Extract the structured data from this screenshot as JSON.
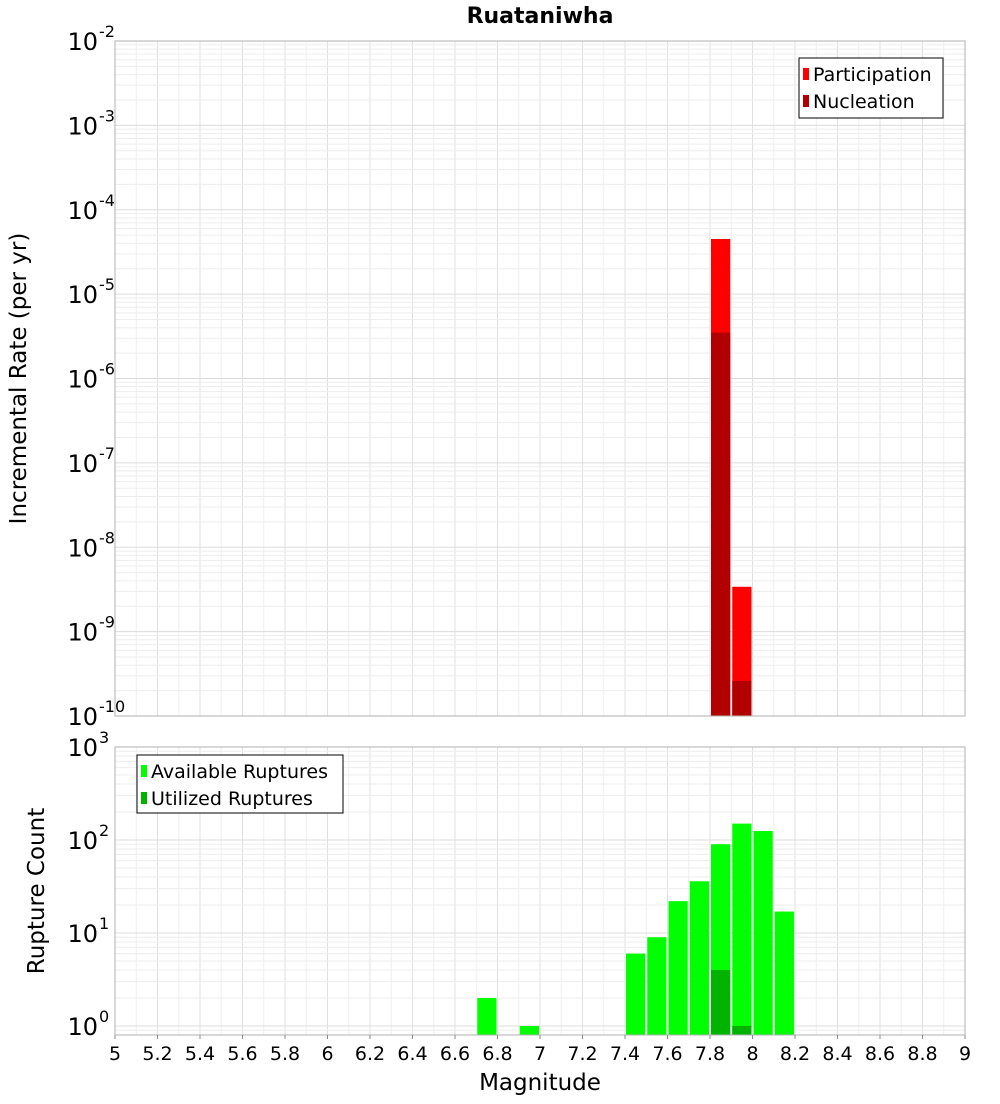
{
  "title": "Ruataniwha",
  "chart_data": [
    {
      "type": "bar",
      "panel": "top",
      "ylabel": "Incremental Rate (per yr)",
      "yscale": "log",
      "ylim": [
        1e-10,
        0.01
      ],
      "y_tick_exponents": [
        -10,
        -9,
        -8,
        -7,
        -6,
        -5,
        -4,
        -3,
        -2
      ],
      "xlim": [
        5,
        9
      ],
      "bar_width": 0.1,
      "legend": {
        "placement": "top-right",
        "entries": [
          "Participation",
          "Nucleation"
        ]
      },
      "series": [
        {
          "name": "Participation",
          "color": "#ff0000",
          "x": [
            7.85,
            7.95
          ],
          "values": [
            4.5e-05,
            3.4e-09
          ]
        },
        {
          "name": "Nucleation",
          "color": "#b20000",
          "x": [
            7.85,
            7.95
          ],
          "values": [
            3.5e-06,
            2.6e-10
          ]
        }
      ],
      "grid": true
    },
    {
      "type": "bar",
      "panel": "bottom",
      "xlabel": "Magnitude",
      "ylabel": "Rupture Count",
      "yscale": "log",
      "ylim": [
        0.8,
        1000
      ],
      "y_tick_exponents": [
        0,
        1,
        2,
        3
      ],
      "xlim": [
        5,
        9
      ],
      "x_ticks": [
        "5",
        "5.2",
        "5.4",
        "5.6",
        "5.8",
        "6",
        "6.2",
        "6.4",
        "6.6",
        "6.8",
        "7",
        "7.2",
        "7.4",
        "7.6",
        "7.8",
        "8",
        "8.2",
        "8.4",
        "8.6",
        "8.8",
        "9"
      ],
      "bar_width": 0.1,
      "legend": {
        "placement": "top-left",
        "entries": [
          "Available Ruptures",
          "Utilized Ruptures"
        ]
      },
      "series": [
        {
          "name": "Available Ruptures",
          "color": "#00ff00",
          "x": [
            6.75,
            6.95,
            7.45,
            7.55,
            7.65,
            7.75,
            7.85,
            7.95,
            8.05,
            8.15
          ],
          "values": [
            2,
            1,
            6,
            9,
            22,
            36,
            90,
            150,
            125,
            17
          ]
        },
        {
          "name": "Utilized Ruptures",
          "color": "#00b300",
          "x": [
            7.85,
            7.95
          ],
          "values": [
            4,
            1
          ]
        }
      ],
      "grid": true
    }
  ]
}
